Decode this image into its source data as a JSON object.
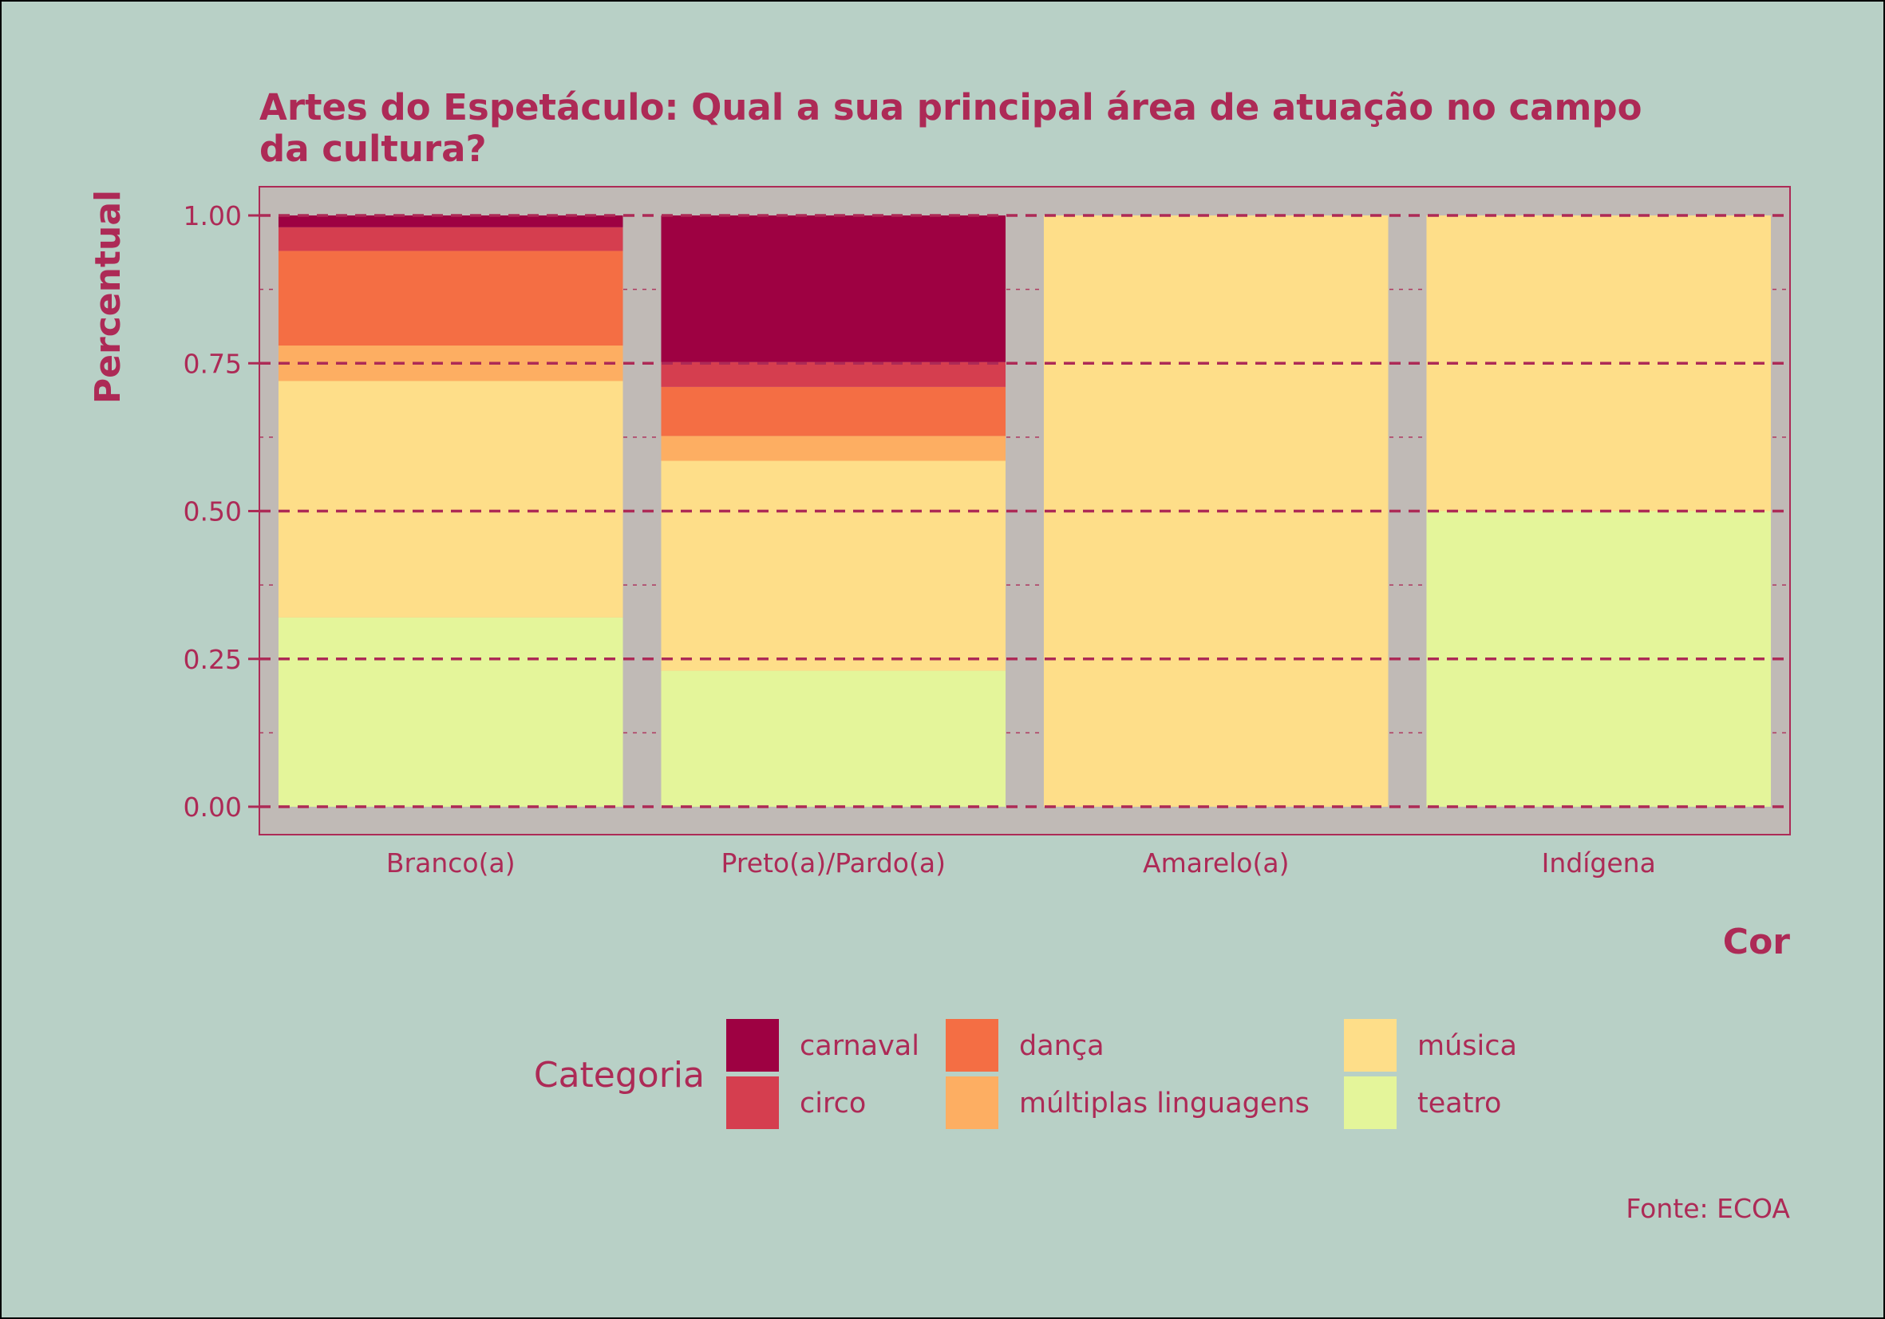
{
  "colors": {
    "background": "#b8d0c6",
    "panel": "#c0bab6",
    "text": "#ad2a56",
    "grid": "#ad2a56"
  },
  "chart_data": {
    "type": "bar",
    "stacked": true,
    "title": "Artes do Espetáculo: Qual a sua principal área de atuação no campo da cultura?",
    "title_lines": [
      "Artes do Espetáculo: Qual a sua principal área de atuação no campo",
      "da cultura?"
    ],
    "xlabel": "Cor",
    "ylabel": "Percentual",
    "ylim": [
      0,
      1
    ],
    "yticks": [
      "0.00",
      "0.25",
      "0.50",
      "0.75",
      "1.00"
    ],
    "categories": [
      "Branco(a)",
      "Preto(a)/Pardo(a)",
      "Amarelo(a)",
      "Indígena"
    ],
    "series": [
      {
        "name": "teatro",
        "color": "#e4f59a",
        "values": [
          0.32,
          0.23,
          0,
          0.5
        ]
      },
      {
        "name": "música",
        "color": "#fede89",
        "values": [
          0.4,
          0.355,
          1.0,
          0.5
        ]
      },
      {
        "name": "múltiplas linguagens",
        "color": "#fdae62",
        "values": [
          0.06,
          0.042,
          0,
          0
        ]
      },
      {
        "name": "dança",
        "color": "#f46e44",
        "values": [
          0.16,
          0.083,
          0,
          0
        ]
      },
      {
        "name": "circo",
        "color": "#d53e4f",
        "values": [
          0.04,
          0.042,
          0,
          0
        ]
      },
      {
        "name": "carnaval",
        "color": "#9e0142",
        "values": [
          0.02,
          0.248,
          0,
          0
        ]
      }
    ],
    "legend": {
      "title": "Categoria",
      "position": "bottom",
      "columns": [
        [
          "carnaval",
          "circo"
        ],
        [
          "dança",
          "múltiplas linguagens"
        ],
        [
          "música",
          "teatro"
        ]
      ]
    },
    "grid": true,
    "caption": "Fonte: ECOA"
  }
}
